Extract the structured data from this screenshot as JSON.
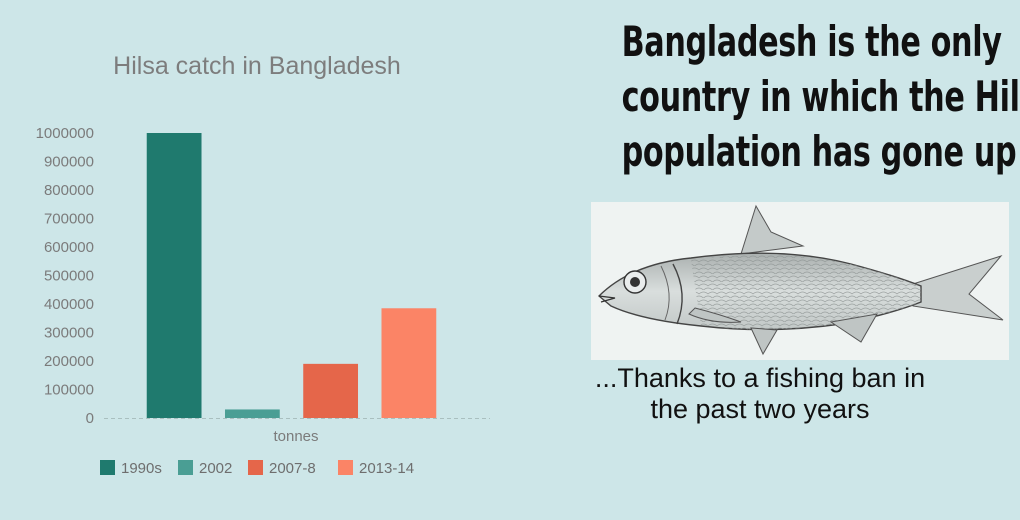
{
  "headline": {
    "line1": "Bangladesh is the only",
    "line2": "country in which the Hilsa",
    "line3": "population has gone up"
  },
  "caption": {
    "line1": "...Thanks to a fishing ban in",
    "line2": "the past two years"
  },
  "image": {
    "icon": "hilsa-fish-illustration"
  },
  "chart_data": {
    "type": "bar",
    "title": "Hilsa catch in Bangladesh",
    "xlabel": "tonnes",
    "ylabel": "",
    "categories": [
      "tonnes"
    ],
    "ylim": [
      0,
      1000000
    ],
    "yticks": [
      "0",
      "100000",
      "200000",
      "300000",
      "400000",
      "500000",
      "600000",
      "700000",
      "800000",
      "900000",
      "1000000"
    ],
    "series": [
      {
        "name": "1990s",
        "values": [
          1000000
        ],
        "color": "#1f7a6e"
      },
      {
        "name": "2002",
        "values": [
          30000
        ],
        "color": "#4a9e94"
      },
      {
        "name": "2007-8",
        "values": [
          190000
        ],
        "color": "#e5664a"
      },
      {
        "name": "2013-14",
        "values": [
          385000
        ],
        "color": "#fb8466"
      }
    ],
    "grid": false,
    "legend": "bottom"
  }
}
